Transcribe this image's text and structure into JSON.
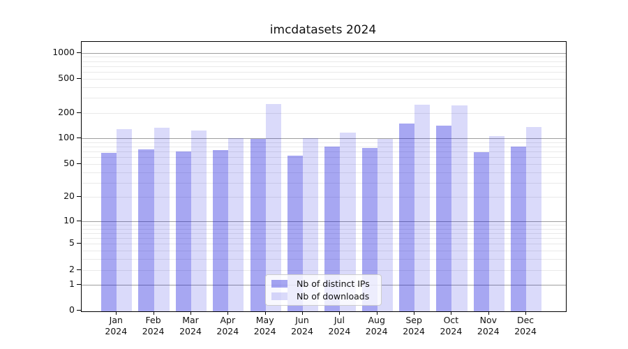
{
  "title": "imcdatasets 2024",
  "chart_data": {
    "type": "bar",
    "title": "imcdatasets 2024",
    "categories": [
      "Jan",
      "Feb",
      "Mar",
      "Apr",
      "May",
      "Jun",
      "Jul",
      "Aug",
      "Sep",
      "Oct",
      "Nov",
      "Dec"
    ],
    "category_year": "2024",
    "series": [
      {
        "key": "distinct-ips",
        "name": "Nb of distinct IPs",
        "color_hex": "#a7a7f1",
        "fill_rgba": "rgba(10,10,220,0.36)",
        "values": [
          68,
          75,
          71,
          73,
          98,
          63,
          81,
          78,
          151,
          141,
          69,
          81
        ]
      },
      {
        "key": "downloads",
        "name": "Nb of downloads",
        "color_hex": "#dcdcf8",
        "fill_rgba": "rgba(10,10,220,0.15)",
        "values": [
          130,
          134,
          123,
          100,
          253,
          100,
          118,
          98,
          247,
          246,
          107,
          135
        ]
      }
    ],
    "xlabel": "",
    "ylabel": "",
    "y_scale": "log1p",
    "y_ticks": [
      0,
      1,
      2,
      5,
      10,
      20,
      50,
      100,
      200,
      500,
      1000
    ],
    "y_major_gridlines": [
      1,
      10,
      100,
      1000
    ],
    "ylim": [
      0,
      1340
    ],
    "grid": true,
    "legend_position": "bottom-center",
    "legend_entries": [
      "Nb of distinct IPs",
      "Nb of downloads"
    ]
  }
}
